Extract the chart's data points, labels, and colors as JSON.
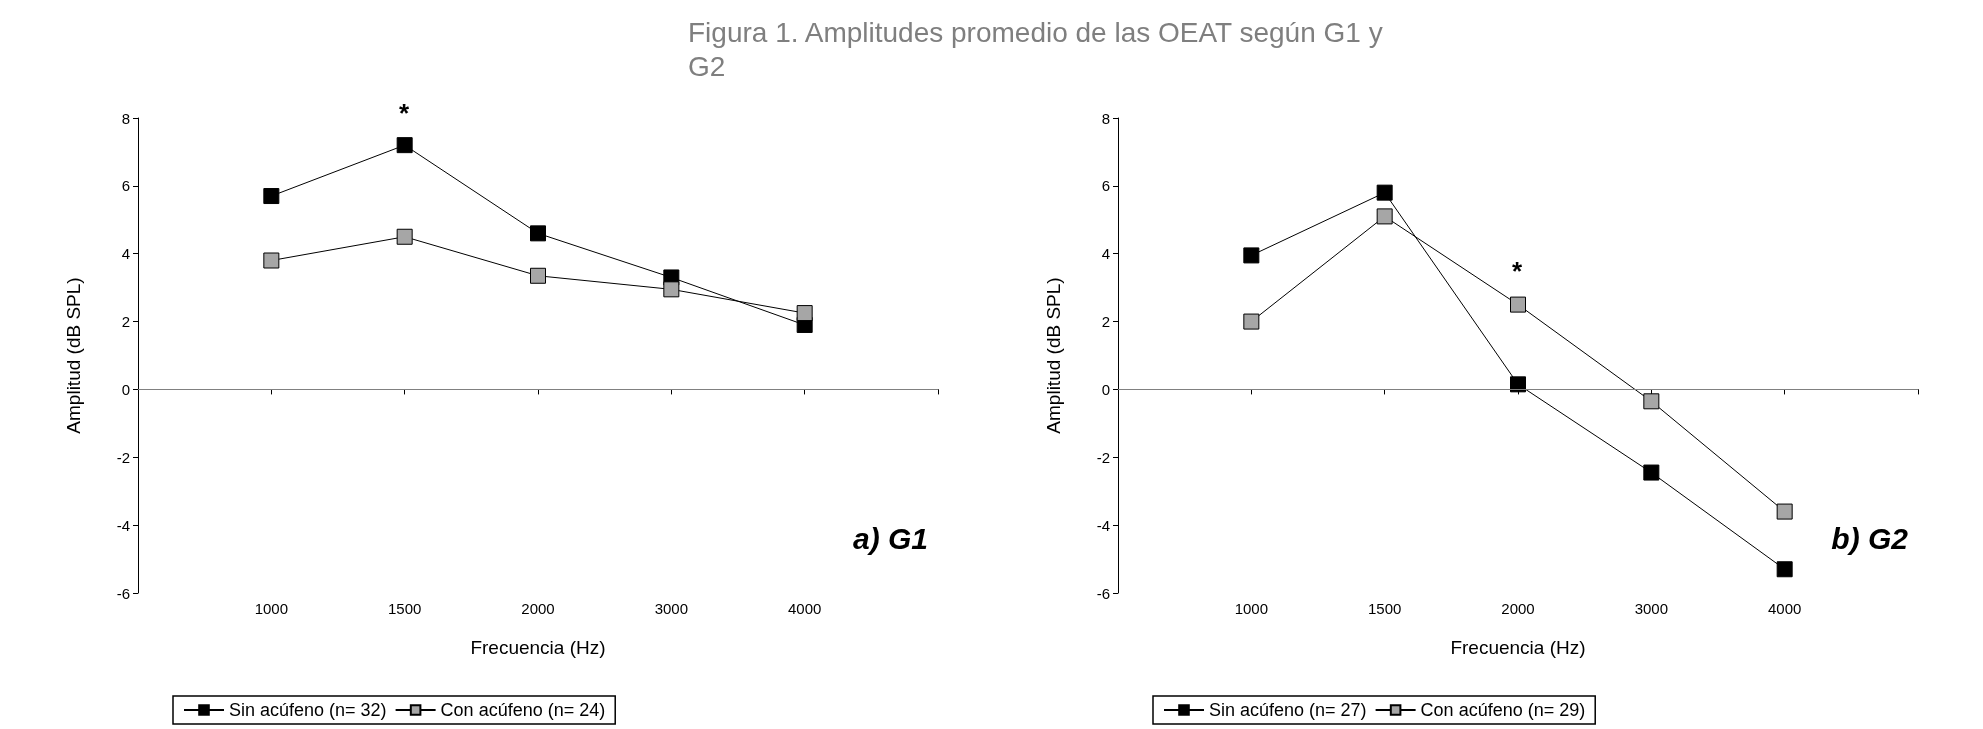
{
  "chart_data": [
    {
      "type": "line",
      "title": "Figura 1. Amplitudes promedio de las OEAT  según G1 y G2",
      "xlabel": "Frecuencia (Hz)",
      "ylabel": "Amplitud (dB SPL)",
      "categories": [
        null,
        "1000",
        "1500",
        "2000",
        "3000",
        "4000",
        null
      ],
      "series": [
        {
          "name": "Sin acúfeno (n= 32)",
          "color": "#000000",
          "values": [
            null,
            5.7,
            7.2,
            4.6,
            3.3,
            1.9,
            null
          ]
        },
        {
          "name": "Con acúfeno (n= 24)",
          "color": "#a6a6a6",
          "values": [
            null,
            3.8,
            4.5,
            3.35,
            2.95,
            2.25,
            null
          ]
        }
      ],
      "ylim": [
        -6,
        8
      ],
      "yticks": [
        -6,
        -4,
        -2,
        0,
        2,
        4,
        6,
        8
      ],
      "grid": false,
      "legend": "bottom",
      "marker": "square",
      "line_style": "solid",
      "ref_lines": [
        {
          "axis": "y",
          "value": 0,
          "color": "#808080"
        }
      ],
      "annotations": [
        "*",
        "a) G1"
      ]
    },
    {
      "type": "line",
      "xlabel": "Frecuencia (Hz)",
      "ylabel": "Amplitud (dB SPL)",
      "categories": [
        null,
        "1000",
        "1500",
        "2000",
        "3000",
        "4000",
        null
      ],
      "series": [
        {
          "name": "Sin acúfeno (n= 27)",
          "color": "#000000",
          "values": [
            null,
            3.95,
            5.8,
            0.15,
            -2.45,
            -5.3,
            null
          ]
        },
        {
          "name": "Con acúfeno (n= 29)",
          "color": "#a6a6a6",
          "values": [
            null,
            2.0,
            5.1,
            2.5,
            -0.35,
            -3.6,
            null
          ]
        }
      ],
      "ylim": [
        -6,
        8
      ],
      "yticks": [
        -6,
        -4,
        -2,
        0,
        2,
        4,
        6,
        8
      ],
      "grid": false,
      "legend": "bottom",
      "marker": "square",
      "line_style": "solid",
      "ref_lines": [
        {
          "axis": "y",
          "value": 0,
          "color": "#808080"
        }
      ],
      "annotations": [
        "*",
        "b) G2"
      ]
    }
  ]
}
